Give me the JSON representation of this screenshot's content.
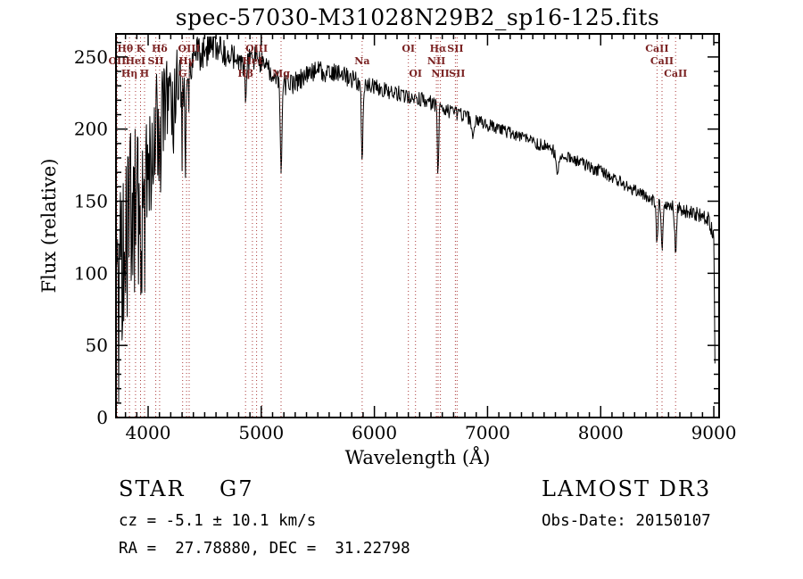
{
  "chart_data": {
    "type": "line",
    "title": "spec-57030-M31028N29B2_sp16-125.fits",
    "xlabel": "Wavelength (Å)",
    "ylabel": "Flux (relative)",
    "xlim": [
      3716,
      9047
    ],
    "ylim": [
      0,
      266
    ],
    "xticks": [
      4000,
      5000,
      6000,
      7000,
      8000,
      9000
    ],
    "yticks": [
      0,
      50,
      100,
      150,
      200,
      250
    ],
    "x_minor_step": 100,
    "y_minor_step": 10,
    "axis_color": "#000000",
    "spectrum_color": "#000000",
    "marker_line_color": "#aa3939",
    "marker_label_color": "#7a2222",
    "seed": 20150107,
    "step": 5,
    "x_start": 3720,
    "x_end": 9012,
    "blue_cutoff": 4250,
    "blue_extra_down": 1.7,
    "spike_cutoff": 4400,
    "spike_prob": 0.09,
    "spike_amp": 55,
    "line_markers": [
      {
        "wavelength": 3727,
        "label": "OII",
        "row": 2
      },
      {
        "wavelength": 3798,
        "label": "Hθ",
        "row": 1
      },
      {
        "wavelength": 3835,
        "label": "Hη",
        "row": 3
      },
      {
        "wavelength": 3889,
        "label": "HeI",
        "row": 2
      },
      {
        "wavelength": 3933,
        "label": "K",
        "row": 1
      },
      {
        "wavelength": 3968,
        "label": "H",
        "row": 3
      },
      {
        "wavelength": 4068,
        "label": "SII",
        "row": 2
      },
      {
        "wavelength": 4102,
        "label": "Hδ",
        "row": 1
      },
      {
        "wavelength": 4305,
        "label": "G",
        "row": 3
      },
      {
        "wavelength": 4340,
        "label": "Hγ",
        "row": 2
      },
      {
        "wavelength": 4363,
        "label": "OIII",
        "row": 1
      },
      {
        "wavelength": 4861,
        "label": "Hβ",
        "row": 3
      },
      {
        "wavelength": 4922,
        "label": "HeI",
        "row": 2
      },
      {
        "wavelength": 4959,
        "label": "OIII",
        "row": 1
      },
      {
        "wavelength": 5007,
        "label": "",
        "row": 1
      },
      {
        "wavelength": 5175,
        "label": "Mg",
        "row": 3
      },
      {
        "wavelength": 5892,
        "label": "Na",
        "row": 2
      },
      {
        "wavelength": 6300,
        "label": "OI",
        "row": 1
      },
      {
        "wavelength": 6363,
        "label": "OI",
        "row": 3
      },
      {
        "wavelength": 6548,
        "label": "NII",
        "row": 2
      },
      {
        "wavelength": 6563,
        "label": "Hα",
        "row": 1
      },
      {
        "wavelength": 6583,
        "label": "NII",
        "row": 3
      },
      {
        "wavelength": 6716,
        "label": "SII",
        "row": 1
      },
      {
        "wavelength": 6731,
        "label": "SII",
        "row": 3
      },
      {
        "wavelength": 8498,
        "label": "CaII",
        "row": 1
      },
      {
        "wavelength": 8542,
        "label": "CaII",
        "row": 2
      },
      {
        "wavelength": 8662,
        "label": "CaII",
        "row": 3
      }
    ],
    "continuum": [
      [
        3716,
        70
      ],
      [
        3740,
        95
      ],
      [
        3770,
        120
      ],
      [
        3800,
        140
      ],
      [
        3840,
        152
      ],
      [
        3880,
        160
      ],
      [
        3920,
        166
      ],
      [
        3960,
        170
      ],
      [
        4000,
        188
      ],
      [
        4040,
        200
      ],
      [
        4080,
        208
      ],
      [
        4120,
        218
      ],
      [
        4160,
        226
      ],
      [
        4200,
        231
      ],
      [
        4250,
        236
      ],
      [
        4300,
        240
      ],
      [
        4350,
        240
      ],
      [
        4400,
        247
      ],
      [
        4450,
        252
      ],
      [
        4500,
        255
      ],
      [
        4560,
        258
      ],
      [
        4620,
        259
      ],
      [
        4680,
        254
      ],
      [
        4740,
        250
      ],
      [
        4800,
        247
      ],
      [
        4860,
        246
      ],
      [
        4920,
        249
      ],
      [
        4980,
        248
      ],
      [
        5040,
        243
      ],
      [
        5100,
        239
      ],
      [
        5160,
        236
      ],
      [
        5220,
        230
      ],
      [
        5280,
        231
      ],
      [
        5340,
        234
      ],
      [
        5400,
        237
      ],
      [
        5460,
        240
      ],
      [
        5520,
        240
      ],
      [
        5580,
        238
      ],
      [
        5640,
        240
      ],
      [
        5700,
        239
      ],
      [
        5760,
        236
      ],
      [
        5820,
        234
      ],
      [
        5880,
        232
      ],
      [
        5940,
        231
      ],
      [
        6000,
        230
      ],
      [
        6080,
        227
      ],
      [
        6160,
        226
      ],
      [
        6240,
        224
      ],
      [
        6320,
        222
      ],
      [
        6400,
        221
      ],
      [
        6480,
        219
      ],
      [
        6560,
        216
      ],
      [
        6640,
        213
      ],
      [
        6720,
        211
      ],
      [
        6800,
        209
      ],
      [
        6880,
        206
      ],
      [
        6960,
        204
      ],
      [
        7040,
        202
      ],
      [
        7120,
        199
      ],
      [
        7200,
        197
      ],
      [
        7280,
        195
      ],
      [
        7360,
        192
      ],
      [
        7440,
        190
      ],
      [
        7520,
        188
      ],
      [
        7600,
        185
      ],
      [
        7680,
        182
      ],
      [
        7760,
        179
      ],
      [
        7840,
        176
      ],
      [
        7920,
        173
      ],
      [
        8000,
        171
      ],
      [
        8080,
        167
      ],
      [
        8160,
        164
      ],
      [
        8240,
        160
      ],
      [
        8320,
        157
      ],
      [
        8400,
        153
      ],
      [
        8480,
        150
      ],
      [
        8560,
        148
      ],
      [
        8640,
        146
      ],
      [
        8720,
        144
      ],
      [
        8800,
        142
      ],
      [
        8880,
        140
      ],
      [
        8950,
        138
      ],
      [
        9000,
        126
      ],
      [
        9006,
        70
      ],
      [
        9012,
        22
      ]
    ],
    "absorption_lines": [
      {
        "center": 3933,
        "depth": 48,
        "width": 9
      },
      {
        "center": 3968,
        "depth": 44,
        "width": 9
      },
      {
        "center": 4102,
        "depth": 26,
        "width": 8
      },
      {
        "center": 4226,
        "depth": 14,
        "width": 6
      },
      {
        "center": 4305,
        "depth": 22,
        "width": 9
      },
      {
        "center": 4340,
        "depth": 24,
        "width": 7
      },
      {
        "center": 4861,
        "depth": 26,
        "width": 7
      },
      {
        "center": 5175,
        "depth": 62,
        "width": 8
      },
      {
        "center": 5892,
        "depth": 58,
        "width": 7
      },
      {
        "center": 6563,
        "depth": 48,
        "width": 6
      },
      {
        "center": 6870,
        "depth": 10,
        "width": 10
      },
      {
        "center": 7620,
        "depth": 13,
        "width": 16
      },
      {
        "center": 8498,
        "depth": 26,
        "width": 7
      },
      {
        "center": 8542,
        "depth": 32,
        "width": 8
      },
      {
        "center": 8662,
        "depth": 28,
        "width": 8
      }
    ],
    "noise_profile": [
      [
        3716,
        52
      ],
      [
        3780,
        48
      ],
      [
        3850,
        44
      ],
      [
        3920,
        40
      ],
      [
        3990,
        36
      ],
      [
        4060,
        32
      ],
      [
        4130,
        28
      ],
      [
        4200,
        24
      ],
      [
        4300,
        19
      ],
      [
        4400,
        15
      ],
      [
        4550,
        12
      ],
      [
        4750,
        10
      ],
      [
        5000,
        8.5
      ],
      [
        5300,
        7.5
      ],
      [
        5700,
        6.5
      ],
      [
        6100,
        5.5
      ],
      [
        6500,
        5
      ],
      [
        7000,
        4.5
      ],
      [
        7500,
        4.2
      ],
      [
        8000,
        4.2
      ],
      [
        8500,
        4.5
      ],
      [
        8800,
        5
      ],
      [
        9012,
        5
      ]
    ]
  },
  "annotations": {
    "class_line": "STAR    G7",
    "survey": "LAMOST DR3",
    "cz_line": "cz = -5.1 ± 10.1 km/s",
    "obs_date_line": "Obs-Date: 20150107",
    "coords_line": "RA =  27.78880, DEC =  31.22798"
  }
}
